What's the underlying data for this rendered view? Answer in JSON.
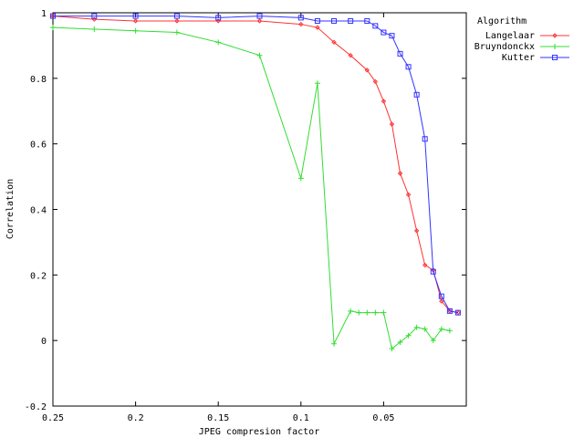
{
  "chart_data": {
    "type": "line",
    "title": "",
    "xlabel": "JPEG compresion factor",
    "ylabel": "Correlation",
    "xlim": [
      0.25,
      0
    ],
    "ylim": [
      -0.2,
      1
    ],
    "x_reversed": true,
    "grid": false,
    "legend_title": "Algorithm",
    "legend_position": "top-right",
    "x_ticks": [
      {
        "value": 0.25,
        "label": "0.25"
      },
      {
        "value": 0.2,
        "label": "0.2"
      },
      {
        "value": 0.15,
        "label": "0.15"
      },
      {
        "value": 0.1,
        "label": "0.1"
      },
      {
        "value": 0.05,
        "label": "0.05"
      }
    ],
    "y_ticks": [
      {
        "value": 1,
        "label": "1"
      },
      {
        "value": 0.8,
        "label": "0.8"
      },
      {
        "value": 0.6,
        "label": "0.6"
      },
      {
        "value": 0.4,
        "label": "0.4"
      },
      {
        "value": 0.2,
        "label": "0.2"
      },
      {
        "value": 0,
        "label": "0"
      },
      {
        "value": -0.2,
        "label": "-0.2"
      }
    ],
    "series": [
      {
        "name": "Langelaar",
        "color": "#ff3333",
        "marker": "diamond",
        "x": [
          0.25,
          0.225,
          0.2,
          0.175,
          0.15,
          0.125,
          0.1,
          0.09,
          0.08,
          0.07,
          0.06,
          0.055,
          0.05,
          0.045,
          0.04,
          0.035,
          0.03,
          0.025,
          0.02,
          0.015,
          0.01,
          0.005
        ],
        "y": [
          0.99,
          0.98,
          0.975,
          0.975,
          0.975,
          0.975,
          0.965,
          0.955,
          0.91,
          0.87,
          0.825,
          0.79,
          0.73,
          0.66,
          0.51,
          0.445,
          0.335,
          0.23,
          0.215,
          0.12,
          0.09,
          0.085
        ]
      },
      {
        "name": "Bruyndonckx",
        "color": "#33dd33",
        "marker": "plus",
        "x": [
          0.25,
          0.225,
          0.2,
          0.175,
          0.15,
          0.125,
          0.1,
          0.09,
          0.08,
          0.07,
          0.065,
          0.06,
          0.055,
          0.05,
          0.045,
          0.04,
          0.035,
          0.03,
          0.025,
          0.02,
          0.015,
          0.01
        ],
        "y": [
          0.955,
          0.95,
          0.945,
          0.94,
          0.91,
          0.87,
          0.495,
          0.785,
          -0.01,
          0.09,
          0.085,
          0.085,
          0.085,
          0.085,
          -0.025,
          -0.005,
          0.015,
          0.04,
          0.035,
          0.0,
          0.035,
          0.03
        ]
      },
      {
        "name": "Kutter",
        "color": "#3333ff",
        "marker": "square",
        "x": [
          0.25,
          0.225,
          0.2,
          0.175,
          0.15,
          0.125,
          0.1,
          0.09,
          0.08,
          0.07,
          0.06,
          0.055,
          0.05,
          0.045,
          0.04,
          0.035,
          0.03,
          0.025,
          0.02,
          0.015,
          0.01,
          0.005
        ],
        "y": [
          0.99,
          0.99,
          0.99,
          0.99,
          0.985,
          0.99,
          0.985,
          0.975,
          0.975,
          0.975,
          0.975,
          0.96,
          0.94,
          0.93,
          0.875,
          0.835,
          0.75,
          0.615,
          0.21,
          0.135,
          0.09,
          0.085
        ]
      }
    ]
  }
}
